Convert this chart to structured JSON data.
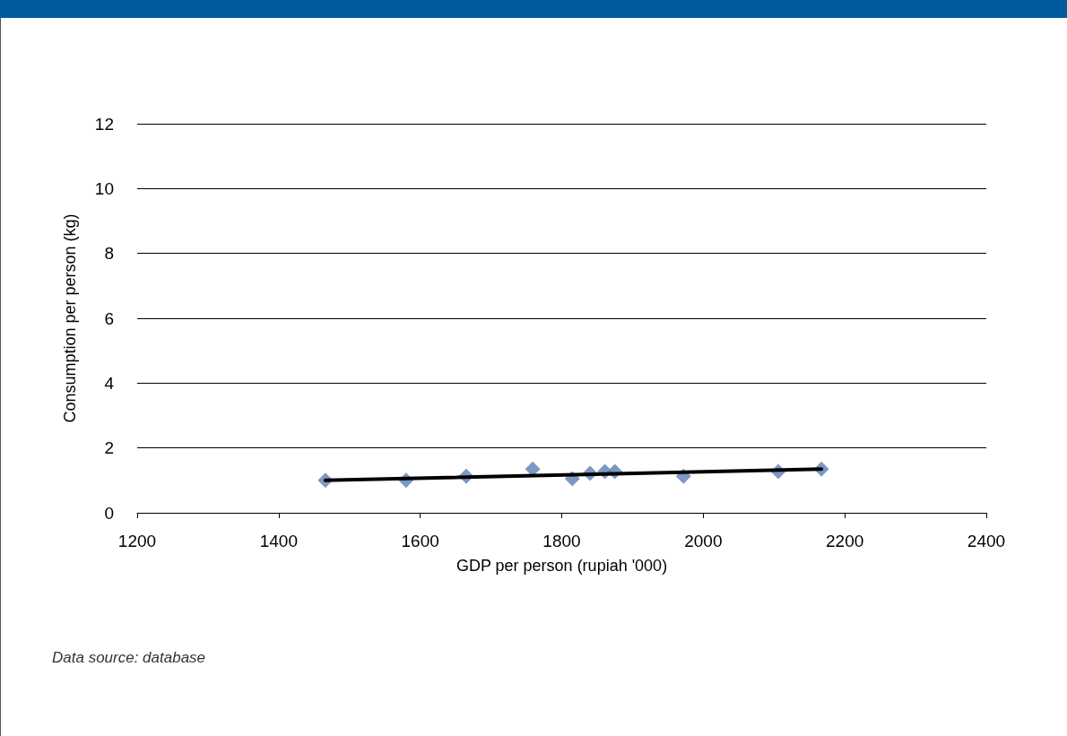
{
  "chart_data": {
    "type": "scatter",
    "xlabel": "GDP per person (rupiah '000)",
    "ylabel": "Consumption per person (kg)",
    "annotations": [
      "Data source: database"
    ],
    "series": [
      {
        "color": "#5b7fb5",
        "marker": "diamond",
        "x": [
          1466,
          1580,
          1665,
          1759,
          1815,
          1840,
          1861,
          1875,
          1972,
          2106,
          2167
        ],
        "values": [
          1.0,
          1.0,
          1.13,
          1.35,
          1.05,
          1.22,
          1.27,
          1.27,
          1.13,
          1.27,
          1.35
        ]
      },
      {
        "type": "line",
        "color": "#000000",
        "marker": "none",
        "line_style": "solid",
        "x": [
          1466,
          2167
        ],
        "values": [
          1.0,
          1.35
        ]
      }
    ],
    "xlim": [
      1200,
      2400
    ],
    "xticks": [
      1200,
      1400,
      1600,
      1800,
      2000,
      2200,
      2400
    ],
    "ylim": [
      0,
      12
    ],
    "yticks": [
      0,
      2,
      4,
      6,
      8,
      10,
      12
    ],
    "grid": "y"
  }
}
